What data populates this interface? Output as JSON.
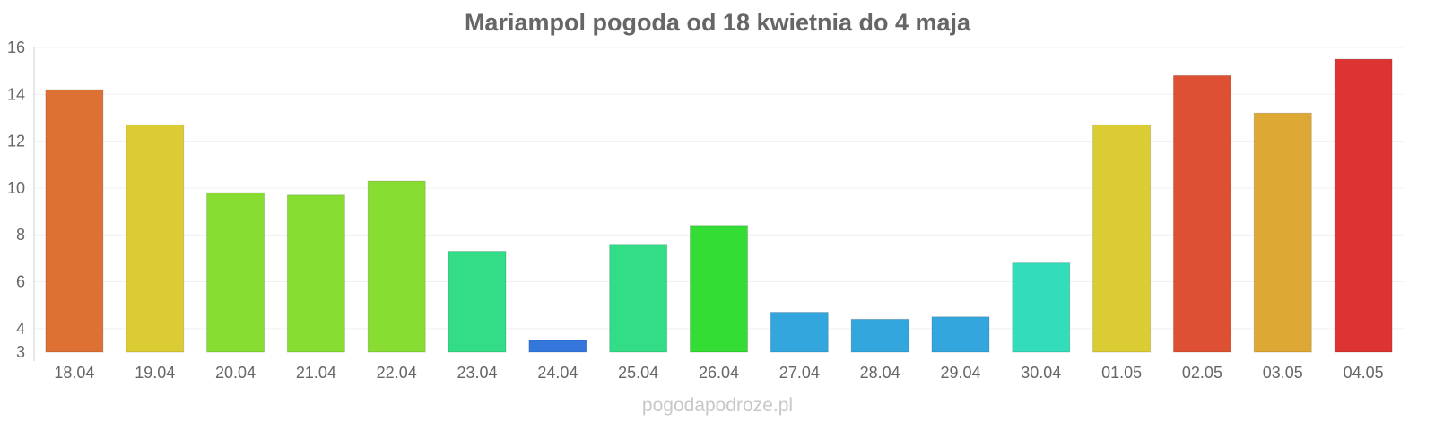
{
  "chart_data": {
    "type": "bar",
    "title": "Mariampol pogoda od 18 kwietnia do 4 maja",
    "xlabel": "",
    "ylabel": "",
    "ylim": [
      3,
      16
    ],
    "yticks": [
      3,
      4,
      6,
      8,
      10,
      12,
      14,
      16
    ],
    "grid": true,
    "categories": [
      "18.04",
      "19.04",
      "20.04",
      "21.04",
      "22.04",
      "23.04",
      "24.04",
      "25.04",
      "26.04",
      "27.04",
      "28.04",
      "29.04",
      "30.04",
      "01.05",
      "02.05",
      "03.05",
      "04.05"
    ],
    "values": [
      14.2,
      12.7,
      9.8,
      9.7,
      10.3,
      7.3,
      3.5,
      7.6,
      8.4,
      4.7,
      4.4,
      4.5,
      6.8,
      12.7,
      14.8,
      13.2,
      15.5
    ],
    "colors": [
      "#dd7033",
      "#dccc33",
      "#88dd33",
      "#88dd33",
      "#88dd33",
      "#33dd88",
      "#3377dd",
      "#33dd88",
      "#33dd33",
      "#33a6dd",
      "#33a6dd",
      "#33a6dd",
      "#33ddbb",
      "#dccc33",
      "#dd5033",
      "#dda833",
      "#dd3333"
    ]
  },
  "source": "pogodapodroze.pl"
}
